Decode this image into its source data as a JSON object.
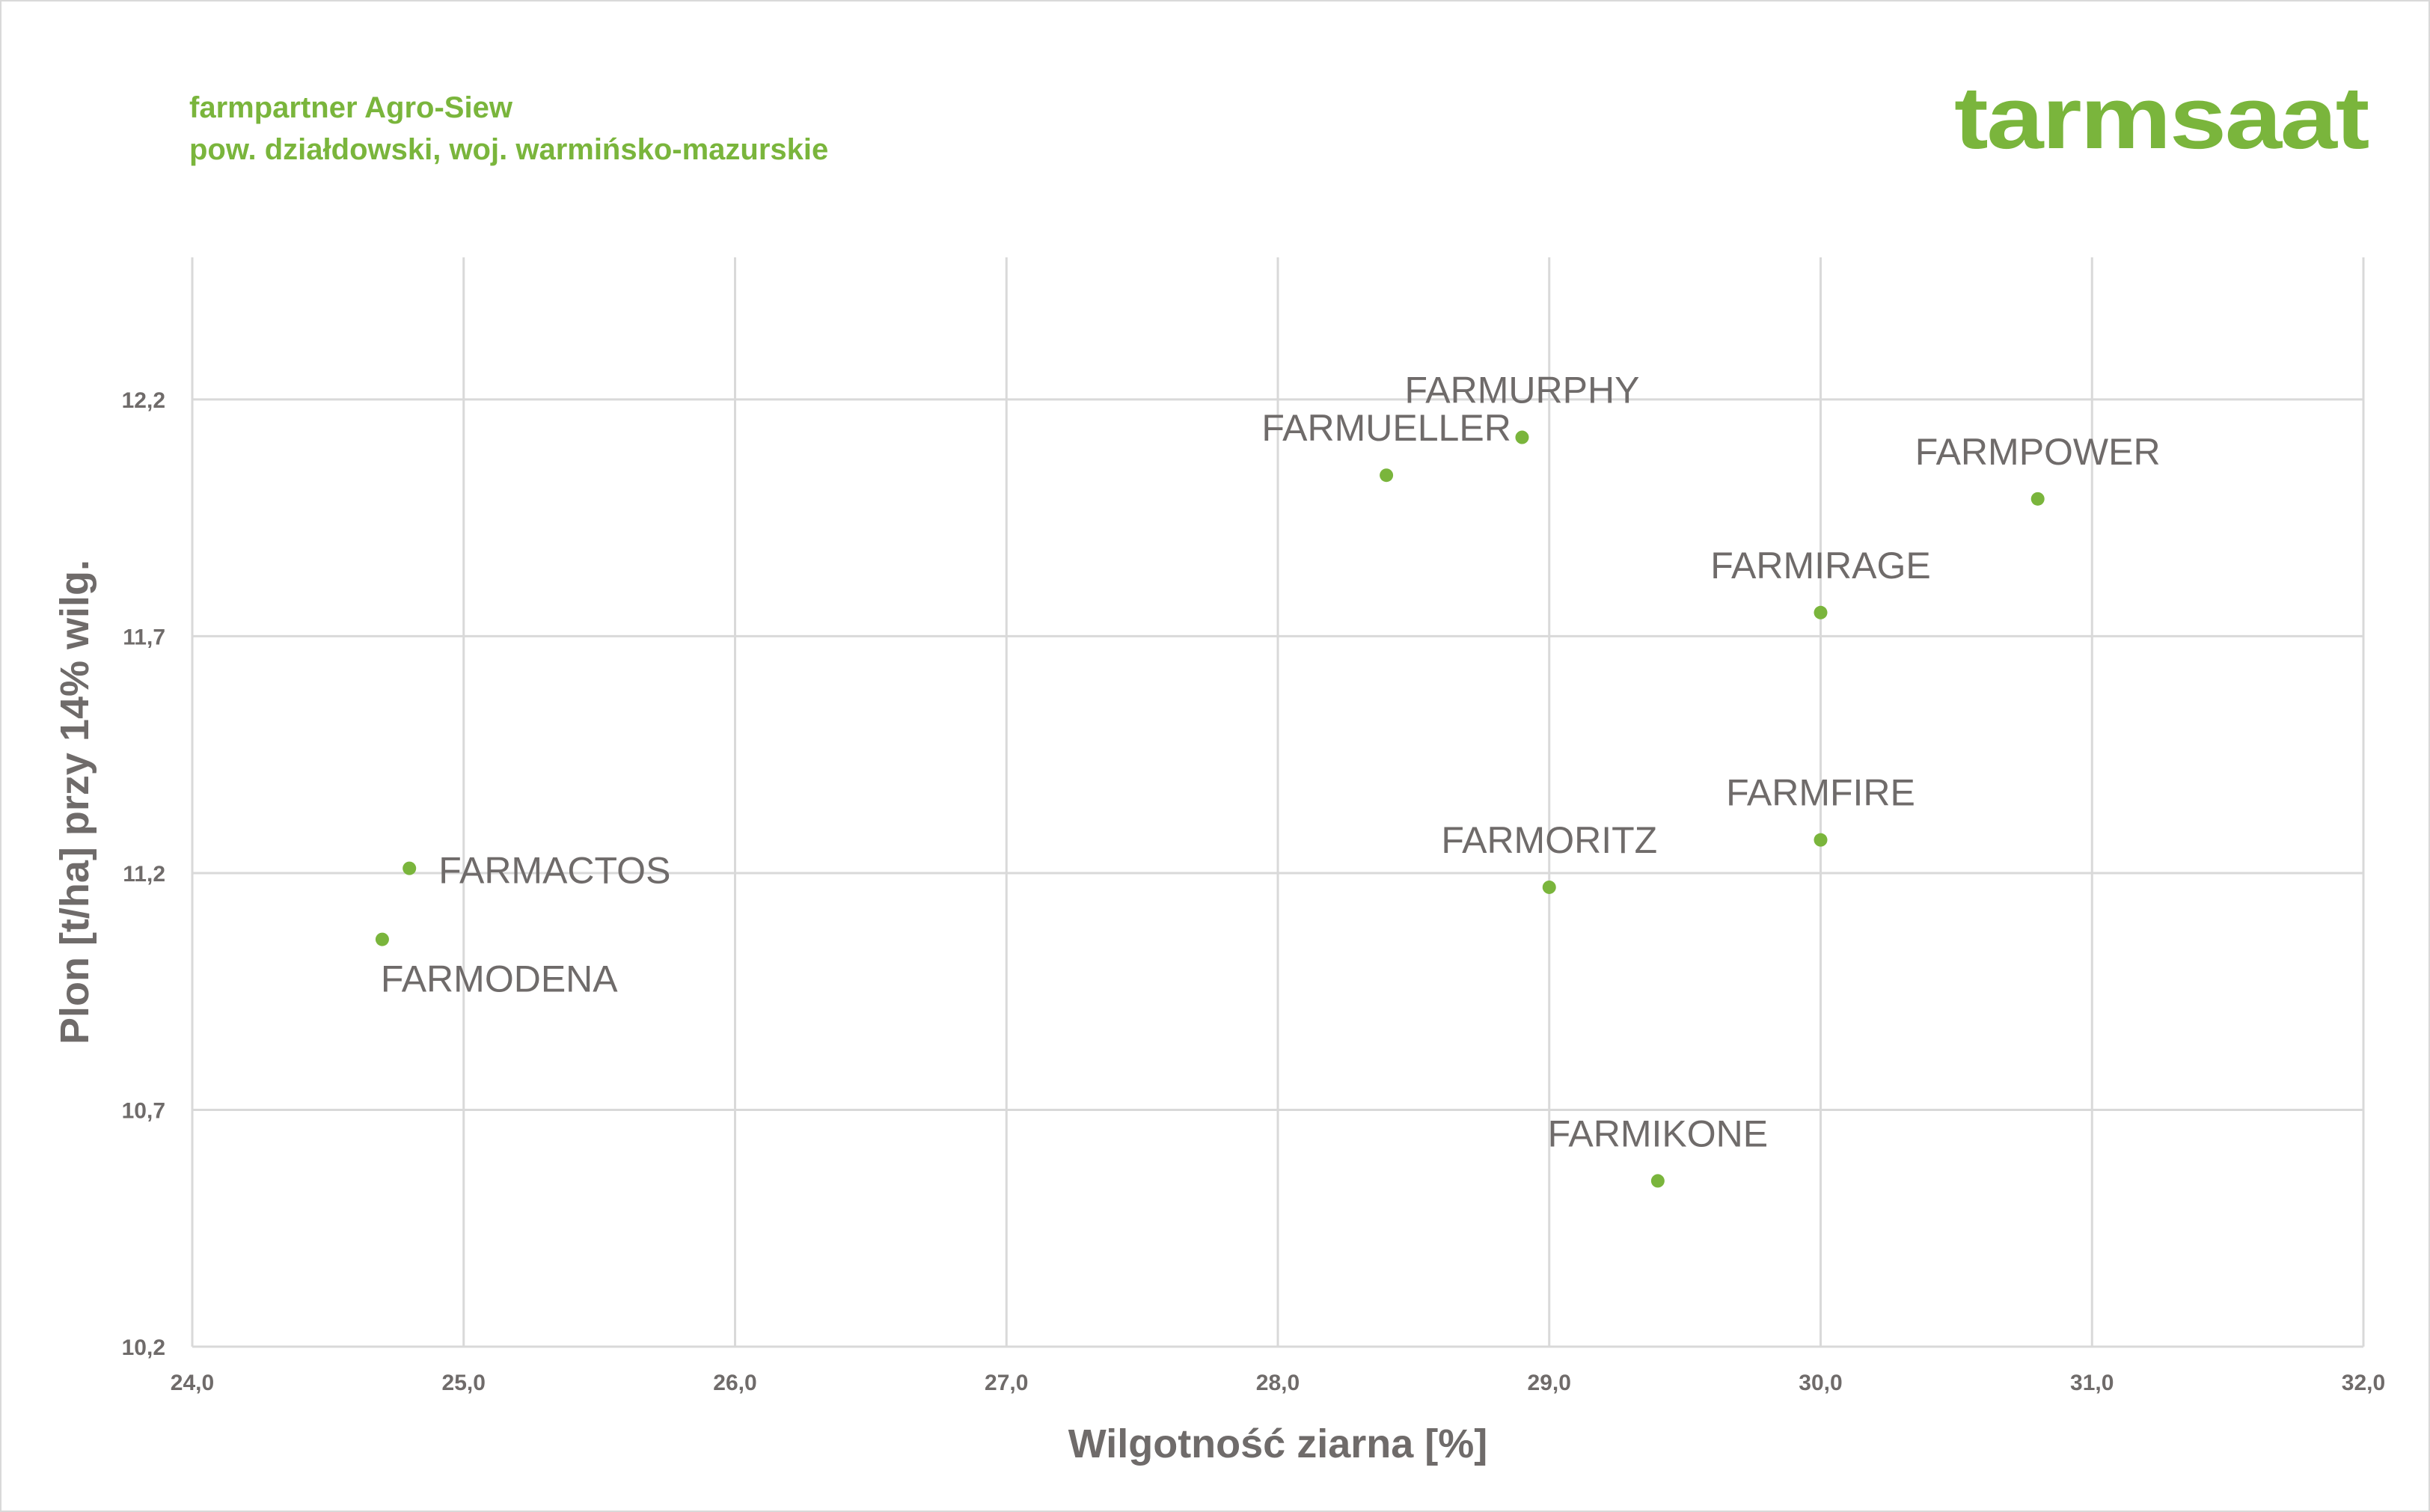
{
  "header": {
    "line1": "farmpartner Agro-Siew",
    "line2": "pow. działdowski, woj. warmińsko-mazurskie",
    "logo_text": "farmsaat"
  },
  "colors": {
    "accent": "#7ab53c",
    "text": "#6f6b6a",
    "grid": "#d9d9d9"
  },
  "chart_data": {
    "type": "scatter",
    "title": "",
    "xlabel": "Wilgotność ziarna [%]",
    "ylabel": "Plon [t/ha] przy 14% wilg.",
    "xlim": [
      24.0,
      32.0
    ],
    "ylim": [
      10.2,
      12.5
    ],
    "xticks": [
      24.0,
      25.0,
      26.0,
      27.0,
      28.0,
      29.0,
      30.0,
      31.0,
      32.0
    ],
    "xtick_labels": [
      "24,0",
      "25,0",
      "26,0",
      "27,0",
      "28,0",
      "29,0",
      "30,0",
      "31,0",
      "32,0"
    ],
    "yticks": [
      10.2,
      10.7,
      11.2,
      11.7,
      12.2
    ],
    "ytick_labels": [
      "10,2",
      "10,7",
      "11,2",
      "11,7",
      "12,2"
    ],
    "grid": true,
    "legend": "none",
    "points": [
      {
        "label": "FARMACTOS",
        "x": 24.8,
        "y": 11.21,
        "label_pos": "right"
      },
      {
        "label": "FARMODENA",
        "x": 24.7,
        "y": 11.06,
        "label_pos": "below"
      },
      {
        "label": "FARMUELLER",
        "x": 28.4,
        "y": 12.04,
        "label_pos": "above"
      },
      {
        "label": "FARMURPHY",
        "x": 28.9,
        "y": 12.12,
        "label_pos": "above"
      },
      {
        "label": "FARMPOWER",
        "x": 30.8,
        "y": 11.99,
        "label_pos": "above"
      },
      {
        "label": "FARMIRAGE",
        "x": 30.0,
        "y": 11.75,
        "label_pos": "above"
      },
      {
        "label": "FARMFIRE",
        "x": 30.0,
        "y": 11.27,
        "label_pos": "above"
      },
      {
        "label": "FARMORITZ",
        "x": 29.0,
        "y": 11.17,
        "label_pos": "above"
      },
      {
        "label": "FARMIKONE",
        "x": 29.4,
        "y": 10.55,
        "label_pos": "above"
      }
    ]
  }
}
